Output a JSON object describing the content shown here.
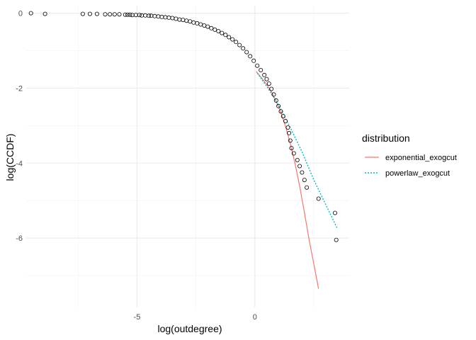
{
  "chart_data": {
    "type": "scatter",
    "xlabel": "log(outdegree)",
    "ylabel": "log(CCDF)",
    "xlim": [
      -9.7,
      4.0
    ],
    "ylim": [
      -7.85,
      0.2
    ],
    "x_ticks": [
      -5,
      0
    ],
    "x_tick_labels": [
      "-5",
      "0"
    ],
    "y_ticks": [
      0,
      -2,
      -4,
      -6
    ],
    "y_tick_labels": [
      "0",
      "-2",
      "-4",
      "-6"
    ],
    "grid": true,
    "legend": {
      "title": "distribution",
      "position": "right",
      "entries": [
        {
          "label": "exponential_exogcut",
          "color": "#F8766D",
          "dash": "solid"
        },
        {
          "label": "powerlaw_exogcut",
          "color": "#00BFC4",
          "dash": "dotted"
        }
      ]
    },
    "points": [
      {
        "x": -9.5,
        "y": 0
      },
      {
        "x": -8.9,
        "y": -0.02
      },
      {
        "x": -7.3,
        "y": -0.02
      },
      {
        "x": -7.0,
        "y": -0.02
      },
      {
        "x": -6.7,
        "y": -0.02
      },
      {
        "x": -6.35,
        "y": -0.03
      },
      {
        "x": -6.15,
        "y": -0.03
      },
      {
        "x": -5.95,
        "y": -0.03
      },
      {
        "x": -5.75,
        "y": -0.03
      },
      {
        "x": -5.5,
        "y": -0.04
      },
      {
        "x": -5.4,
        "y": -0.04
      },
      {
        "x": -5.3,
        "y": -0.04
      },
      {
        "x": -5.2,
        "y": -0.05
      },
      {
        "x": -5.05,
        "y": -0.05
      },
      {
        "x": -4.9,
        "y": -0.05
      },
      {
        "x": -4.8,
        "y": -0.06
      },
      {
        "x": -4.65,
        "y": -0.06
      },
      {
        "x": -4.5,
        "y": -0.07
      },
      {
        "x": -4.4,
        "y": -0.07
      },
      {
        "x": -4.25,
        "y": -0.08
      },
      {
        "x": -4.1,
        "y": -0.09
      },
      {
        "x": -3.95,
        "y": -0.1
      },
      {
        "x": -3.8,
        "y": -0.11
      },
      {
        "x": -3.65,
        "y": -0.12
      },
      {
        "x": -3.5,
        "y": -0.13
      },
      {
        "x": -3.35,
        "y": -0.15
      },
      {
        "x": -3.2,
        "y": -0.17
      },
      {
        "x": -3.05,
        "y": -0.18
      },
      {
        "x": -2.9,
        "y": -0.2
      },
      {
        "x": -2.75,
        "y": -0.22
      },
      {
        "x": -2.6,
        "y": -0.25
      },
      {
        "x": -2.45,
        "y": -0.27
      },
      {
        "x": -2.3,
        "y": -0.3
      },
      {
        "x": -2.15,
        "y": -0.33
      },
      {
        "x": -2.0,
        "y": -0.36
      },
      {
        "x": -1.85,
        "y": -0.4
      },
      {
        "x": -1.7,
        "y": -0.44
      },
      {
        "x": -1.55,
        "y": -0.48
      },
      {
        "x": -1.4,
        "y": -0.53
      },
      {
        "x": -1.25,
        "y": -0.58
      },
      {
        "x": -1.1,
        "y": -0.64
      },
      {
        "x": -0.95,
        "y": -0.7
      },
      {
        "x": -0.8,
        "y": -0.77
      },
      {
        "x": -0.65,
        "y": -0.85
      },
      {
        "x": -0.5,
        "y": -0.94
      },
      {
        "x": -0.35,
        "y": -1.04
      },
      {
        "x": -0.2,
        "y": -1.15
      },
      {
        "x": -0.05,
        "y": -1.27
      },
      {
        "x": 0.1,
        "y": -1.4
      },
      {
        "x": 0.25,
        "y": -1.52
      },
      {
        "x": 0.4,
        "y": -1.65
      },
      {
        "x": 0.5,
        "y": -1.76
      },
      {
        "x": 0.6,
        "y": -1.88
      },
      {
        "x": 0.7,
        "y": -2.02
      },
      {
        "x": 0.8,
        "y": -2.17
      },
      {
        "x": 0.9,
        "y": -2.33
      },
      {
        "x": 1.0,
        "y": -2.48
      },
      {
        "x": 1.1,
        "y": -2.62
      },
      {
        "x": 1.2,
        "y": -2.75
      },
      {
        "x": 1.3,
        "y": -2.88
      },
      {
        "x": 1.4,
        "y": -3.05
      },
      {
        "x": 1.45,
        "y": -3.2
      },
      {
        "x": 1.5,
        "y": -3.4
      },
      {
        "x": 1.55,
        "y": -3.6
      },
      {
        "x": 1.65,
        "y": -3.74
      },
      {
        "x": 1.8,
        "y": -3.92
      },
      {
        "x": 1.9,
        "y": -4.08
      },
      {
        "x": 2.0,
        "y": -4.25
      },
      {
        "x": 2.1,
        "y": -4.45
      },
      {
        "x": 2.2,
        "y": -4.65
      },
      {
        "x": 2.7,
        "y": -4.95
      },
      {
        "x": 3.4,
        "y": -5.33
      },
      {
        "x": 3.45,
        "y": -6.05
      }
    ],
    "series": [
      {
        "name": "exponential_exogcut",
        "color": "#F8766D",
        "x": [
          0.05,
          0.3,
          0.5,
          0.7,
          0.9,
          1.1,
          1.3,
          1.5,
          1.7,
          1.9,
          2.1,
          2.3,
          2.5,
          2.7
        ],
        "y": [
          -1.55,
          -1.74,
          -1.9,
          -2.1,
          -2.35,
          -2.65,
          -3.02,
          -3.47,
          -4.0,
          -4.62,
          -5.32,
          -6.05,
          -6.7,
          -7.35
        ]
      },
      {
        "name": "powerlaw_exogcut",
        "color": "#00BFC4",
        "x": [
          0.1,
          0.5,
          1.0,
          1.5,
          2.0,
          2.5,
          3.0,
          3.5
        ],
        "y": [
          -1.6,
          -1.95,
          -2.45,
          -3.05,
          -3.7,
          -4.45,
          -5.1,
          -5.75
        ]
      }
    ]
  }
}
